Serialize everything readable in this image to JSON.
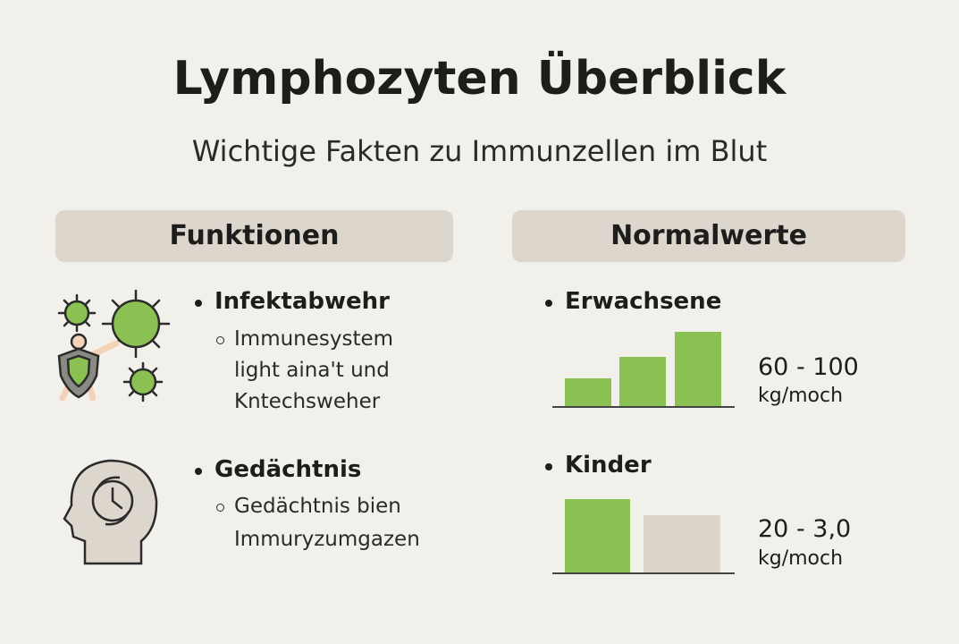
{
  "header": {
    "title": "Lymphozyten Überblick",
    "subtitle": "Wichtige Fakten zu Immunzellen im Blut"
  },
  "functions": {
    "heading": "Funktionen",
    "items": [
      {
        "label": "Infektabwehr",
        "details": [
          "Immunesystem",
          "light aina't und",
          "Kntechsweher"
        ]
      },
      {
        "label": "Gedächtnis",
        "details": [
          "Gedächtnis bien",
          "Immuryzumgazen"
        ]
      }
    ]
  },
  "normal_values": {
    "heading": "Normalwerte",
    "items": [
      {
        "label": "Erwachsene",
        "value": "60 - 100",
        "unit": "kg/moch"
      },
      {
        "label": "Kinder",
        "value": "20 - 3,0",
        "unit": "kg/moch"
      }
    ]
  }
}
